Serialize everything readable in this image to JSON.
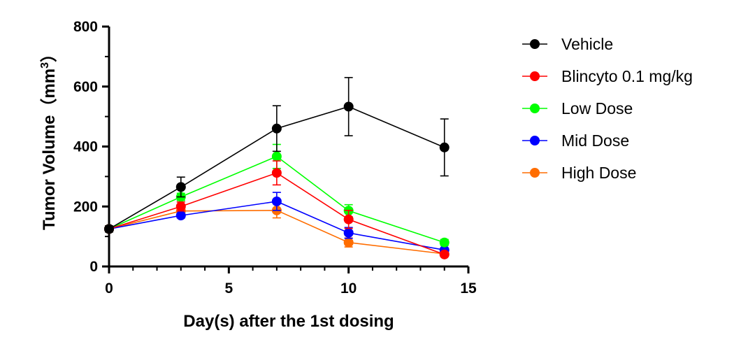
{
  "chart_data": {
    "type": "line",
    "title": "",
    "xlabel": "Day(s) after the 1st dosing",
    "ylabel": "Tumor Volume",
    "ylabel_unit": "（mm",
    "ylabel_unit_sup": "3",
    "ylabel_unit_close": "）",
    "xlim": [
      0,
      15
    ],
    "ylim": [
      0,
      800
    ],
    "x_ticks": [
      0,
      5,
      10,
      15
    ],
    "y_ticks": [
      0,
      200,
      400,
      600,
      800
    ],
    "grid": false,
    "legend_position": "right",
    "x": [
      0,
      3,
      7,
      10,
      14
    ],
    "series": [
      {
        "name": "Vehicle",
        "color": "#000000",
        "values": [
          125,
          265,
          460,
          533,
          397
        ],
        "errors": [
          10,
          33,
          76,
          97,
          95
        ]
      },
      {
        "name": "Blincyto 0.1 mg/kg",
        "color": "#ff0000",
        "values": [
          125,
          200,
          312,
          157,
          40
        ],
        "errors": [
          10,
          15,
          40,
          30,
          6
        ]
      },
      {
        "name": "Low Dose",
        "color": "#00ff00",
        "values": [
          125,
          232,
          367,
          186,
          80
        ],
        "errors": [
          10,
          12,
          40,
          20,
          10
        ]
      },
      {
        "name": "Mid Dose",
        "color": "#0000ff",
        "values": [
          125,
          170,
          217,
          112,
          55
        ],
        "errors": [
          10,
          8,
          30,
          18,
          6
        ]
      },
      {
        "name": "High Dose",
        "color": "#ff6d00",
        "values": [
          125,
          185,
          187,
          80,
          42
        ],
        "errors": [
          10,
          10,
          25,
          15,
          6
        ]
      }
    ]
  }
}
